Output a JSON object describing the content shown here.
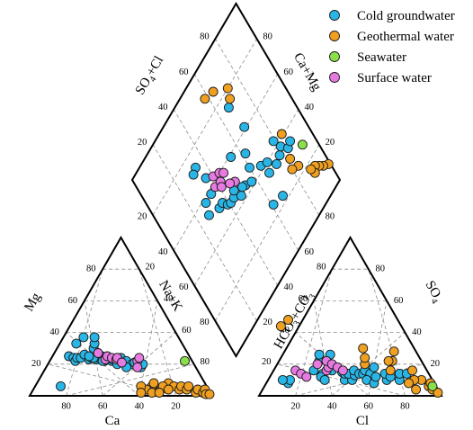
{
  "chart_data": {
    "type": "scatter",
    "subtype": "piper-diagram",
    "legend": {
      "placement": "top-right",
      "entries": [
        {
          "name": "Cold groundwater",
          "color": "#29b6e6"
        },
        {
          "name": "Geothermal water",
          "color": "#f0a020"
        },
        {
          "name": "Seawater",
          "color": "#8be04a"
        },
        {
          "name": "Surface water",
          "color": "#e57ae0"
        }
      ]
    },
    "axes": {
      "cation_ternary": {
        "ylabel": "Mg",
        "xlabel": "Ca",
        "right_label": "Na+K"
      },
      "anion_ternary": {
        "ylabel": "HCO3+CO3",
        "xlabel": "Cl",
        "right_label": "SO4"
      },
      "diamond": {
        "upper_left_label": "SO4+Cl",
        "upper_right_label": "Ca+Mg"
      }
    },
    "ticks": {
      "cation_base": [
        "80",
        "60",
        "40",
        "20"
      ],
      "cation_left": [
        "20",
        "40",
        "60",
        "80"
      ],
      "cation_right": [
        "20",
        "40",
        "60",
        "80"
      ],
      "anion_base": [
        "20",
        "40",
        "60",
        "80"
      ],
      "anion_left": [
        "20",
        "40",
        "60",
        "80"
      ],
      "anion_right": [
        "20",
        "40",
        "60",
        "80"
      ],
      "diamond_ul": [
        "20",
        "40",
        "60",
        "80"
      ],
      "diamond_ur": [
        "80",
        "60",
        "40",
        "20"
      ],
      "diamond_ll": [
        "20",
        "40",
        "60",
        "80"
      ],
      "diamond_lr": [
        "20",
        "40",
        "60",
        "80"
      ]
    },
    "series": [
      {
        "name": "Cold groundwater",
        "cations": [
          [
            58,
            33,
            9
          ],
          [
            66,
            25,
            9
          ],
          [
            64,
            24,
            12
          ],
          [
            64,
            22,
            14
          ],
          [
            62,
            24,
            14
          ],
          [
            60,
            24,
            16
          ],
          [
            57,
            26,
            17
          ],
          [
            56,
            23,
            21
          ],
          [
            54,
            24,
            22
          ],
          [
            52,
            23,
            25
          ],
          [
            50,
            24,
            26
          ],
          [
            48,
            25,
            27
          ],
          [
            47,
            24,
            29
          ],
          [
            45,
            24,
            31
          ],
          [
            44,
            22,
            34
          ],
          [
            43,
            23,
            34
          ],
          [
            48,
            22,
            30
          ],
          [
            53,
            24,
            23
          ],
          [
            55,
            25,
            20
          ],
          [
            49,
            22,
            29
          ],
          [
            50,
            30,
            20
          ],
          [
            48,
            33,
            19
          ],
          [
            46,
            37,
            17
          ],
          [
            52,
            37,
            11
          ],
          [
            38,
            24,
            38
          ],
          [
            36,
            22,
            42
          ],
          [
            34,
            20,
            46
          ],
          [
            32,
            21,
            47
          ],
          [
            42,
            20,
            38
          ],
          [
            40,
            24,
            36
          ],
          [
            30,
            18,
            52
          ],
          [
            28,
            20,
            52
          ],
          [
            38,
            18,
            44
          ],
          [
            80,
            6,
            14
          ]
        ],
        "anions": [
          [
            80,
            8,
            12
          ],
          [
            78,
            10,
            12
          ],
          [
            82,
            10,
            8
          ],
          [
            62,
            16,
            22
          ],
          [
            58,
            14,
            28
          ],
          [
            60,
            12,
            28
          ],
          [
            59,
            10,
            31
          ],
          [
            52,
            16,
            32
          ],
          [
            47,
            15,
            38
          ],
          [
            48,
            10,
            42
          ],
          [
            46,
            14,
            40
          ],
          [
            44,
            10,
            46
          ],
          [
            44,
            14,
            42
          ],
          [
            41,
            13,
            46
          ],
          [
            40,
            16,
            44
          ],
          [
            38,
            14,
            48
          ],
          [
            36,
            14,
            50
          ],
          [
            34,
            16,
            50
          ],
          [
            32,
            14,
            54
          ],
          [
            36,
            10,
            54
          ],
          [
            33,
            8,
            59
          ],
          [
            30,
            12,
            58
          ],
          [
            25,
            10,
            65
          ],
          [
            24,
            14,
            62
          ],
          [
            48,
            26,
            26
          ],
          [
            56,
            22,
            22
          ],
          [
            54,
            26,
            20
          ],
          [
            18,
            10,
            72
          ],
          [
            16,
            14,
            70
          ],
          [
            28,
            18,
            54
          ],
          [
            22,
            12,
            66
          ],
          [
            12,
            14,
            74
          ]
        ],
        "diamond": [
          [
            36,
            65
          ],
          [
            34,
            58
          ],
          [
            29,
            58
          ],
          [
            27,
            53
          ],
          [
            34,
            50
          ],
          [
            37,
            50
          ],
          [
            39,
            47
          ],
          [
            41,
            46
          ],
          [
            44,
            46
          ],
          [
            46,
            48
          ],
          [
            53,
            44
          ],
          [
            57,
            42
          ],
          [
            60,
            47
          ],
          [
            66,
            42
          ],
          [
            70,
            40
          ],
          [
            78,
            36
          ],
          [
            81,
            38
          ],
          [
            84,
            34
          ],
          [
            87,
            35
          ],
          [
            79,
            43
          ],
          [
            62,
            53
          ],
          [
            69,
            61
          ],
          [
            67,
            74
          ],
          [
            34,
            73
          ],
          [
            31,
            72
          ],
          [
            61,
            25
          ],
          [
            68,
            23
          ],
          [
            68,
            36
          ],
          [
            74,
            35
          ],
          [
            54,
            59
          ],
          [
            48,
            43
          ],
          [
            51,
            45
          ]
        ]
      },
      {
        "name": "Geothermal water",
        "cations": [
          [
            20,
            8,
            72
          ],
          [
            18,
            6,
            76
          ],
          [
            16,
            4,
            80
          ],
          [
            14,
            6,
            80
          ],
          [
            12,
            4,
            84
          ],
          [
            10,
            6,
            84
          ],
          [
            8,
            2,
            90
          ],
          [
            6,
            4,
            90
          ],
          [
            4,
            2,
            94
          ],
          [
            2,
            4,
            94
          ],
          [
            30,
            6,
            64
          ],
          [
            28,
            8,
            64
          ],
          [
            26,
            4,
            70
          ],
          [
            24,
            6,
            70
          ],
          [
            22,
            4,
            74
          ],
          [
            34,
            4,
            62
          ],
          [
            36,
            6,
            58
          ],
          [
            38,
            2,
            60
          ],
          [
            32,
            2,
            66
          ],
          [
            28,
            2,
            70
          ],
          [
            3,
            1,
            96
          ],
          [
            1,
            1,
            98
          ]
        ],
        "anions": [
          [
            66,
            44,
            -10
          ],
          [
            60,
            48,
            -8
          ],
          [
            32,
            20,
            48
          ],
          [
            30,
            24,
            46
          ],
          [
            28,
            30,
            42
          ],
          [
            16,
            22,
            62
          ],
          [
            12,
            28,
            60
          ],
          [
            8,
            16,
            76
          ],
          [
            6,
            10,
            84
          ],
          [
            4,
            6,
            90
          ],
          [
            2,
            8,
            90
          ],
          [
            10,
            10,
            80
          ],
          [
            14,
            8,
            78
          ],
          [
            12,
            4,
            84
          ],
          [
            3,
            4,
            93
          ],
          [
            1,
            2,
            97
          ],
          [
            20,
            16,
            64
          ],
          [
            18,
            22,
            60
          ]
        ],
        "diamond": [
          [
            99,
            10
          ],
          [
            96,
            12
          ],
          [
            94,
            14
          ],
          [
            92,
            16
          ],
          [
            90,
            14
          ],
          [
            89,
            17
          ],
          [
            84,
            24
          ],
          [
            80,
            26
          ],
          [
            82,
            30
          ],
          [
            70,
            76
          ],
          [
            72,
            80
          ],
          [
            58,
            88
          ],
          [
            64,
            86
          ],
          [
            85,
            41
          ]
        ]
      },
      {
        "name": "Seawater",
        "cations": [
          [
            4,
            22,
            74
          ]
        ],
        "anions": [
          [
            2,
            6,
            92
          ]
        ],
        "diamond": [
          [
            92,
            28
          ]
        ]
      },
      {
        "name": "Surface water",
        "cations": [
          [
            49,
            27,
            24
          ],
          [
            47,
            23,
            30
          ],
          [
            45,
            25,
            30
          ],
          [
            43,
            24,
            33
          ],
          [
            41,
            23,
            36
          ],
          [
            40,
            24,
            36
          ],
          [
            39,
            21,
            40
          ],
          [
            30,
            22,
            48
          ],
          [
            28,
            24,
            48
          ],
          [
            32,
            18,
            50
          ]
        ],
        "anions": [
          [
            72,
            16,
            12
          ],
          [
            70,
            14,
            16
          ],
          [
            68,
            12,
            20
          ],
          [
            58,
            20,
            22
          ],
          [
            55,
            16,
            29
          ],
          [
            53,
            18,
            29
          ],
          [
            52,
            22,
            26
          ],
          [
            50,
            20,
            30
          ],
          [
            48,
            18,
            34
          ],
          [
            46,
            16,
            38
          ]
        ],
        "diamond": [
          [
            40,
            62
          ],
          [
            44,
            60
          ],
          [
            46,
            58
          ],
          [
            38,
            58
          ],
          [
            42,
            57
          ],
          [
            41,
            55
          ],
          [
            49,
            50
          ],
          [
            46,
            52
          ]
        ]
      }
    ]
  }
}
